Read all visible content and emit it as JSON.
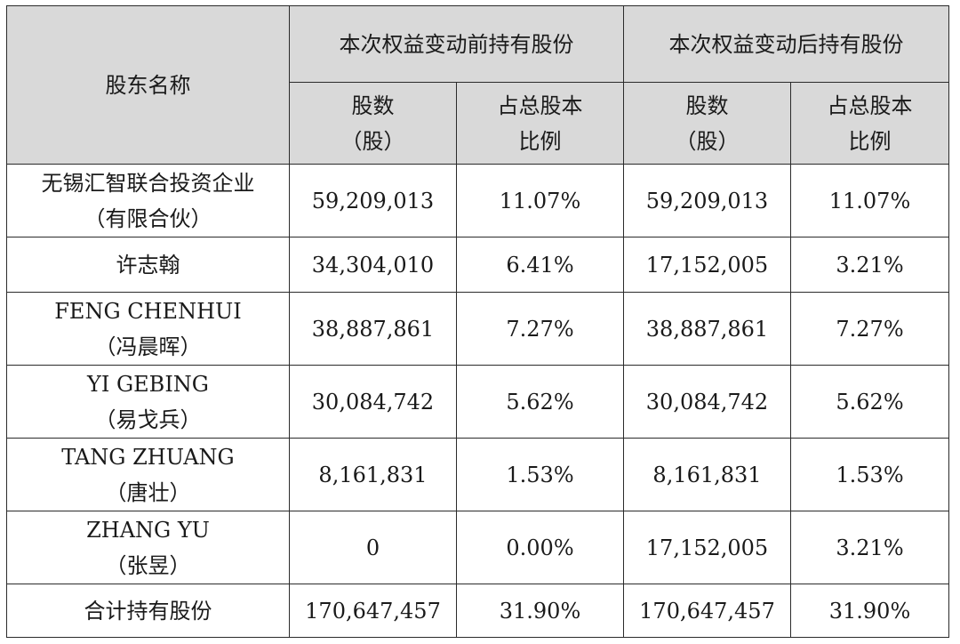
{
  "header": {
    "shareholder_name": "股东名称",
    "before_group": "本次权益变动前持有股份",
    "after_group": "本次权益变动后持有股份",
    "shares_line1": "股数",
    "shares_line2": "（股）",
    "ratio_line1": "占总股本",
    "ratio_line2": "比例"
  },
  "rows": [
    {
      "name_line1": "无锡汇智联合投资企业",
      "name_line2": "（有限合伙）",
      "before_shares": "59,209,013",
      "before_ratio": "11.07%",
      "after_shares": "59,209,013",
      "after_ratio": "11.07%"
    },
    {
      "name_line1": "许志翰",
      "name_line2": "",
      "before_shares": "34,304,010",
      "before_ratio": "6.41%",
      "after_shares": "17,152,005",
      "after_ratio": "3.21%"
    },
    {
      "name_line1": "FENG CHENHUI",
      "name_line2": "（冯晨晖）",
      "before_shares": "38,887,861",
      "before_ratio": "7.27%",
      "after_shares": "38,887,861",
      "after_ratio": "7.27%"
    },
    {
      "name_line1": "YI GEBING",
      "name_line2": "（易戈兵）",
      "before_shares": "30,084,742",
      "before_ratio": "5.62%",
      "after_shares": "30,084,742",
      "after_ratio": "5.62%"
    },
    {
      "name_line1": "TANG ZHUANG",
      "name_line2": "（唐壮）",
      "before_shares": "8,161,831",
      "before_ratio": "1.53%",
      "after_shares": "8,161,831",
      "after_ratio": "1.53%"
    },
    {
      "name_line1": "ZHANG YU",
      "name_line2": "（张昱）",
      "before_shares": "0",
      "before_ratio": "0.00%",
      "after_shares": "17,152,005",
      "after_ratio": "3.21%"
    },
    {
      "name_line1": "合计持有股份",
      "name_line2": "",
      "before_shares": "170,647,457",
      "before_ratio": "31.90%",
      "after_shares": "170,647,457",
      "after_ratio": "31.90%"
    }
  ]
}
